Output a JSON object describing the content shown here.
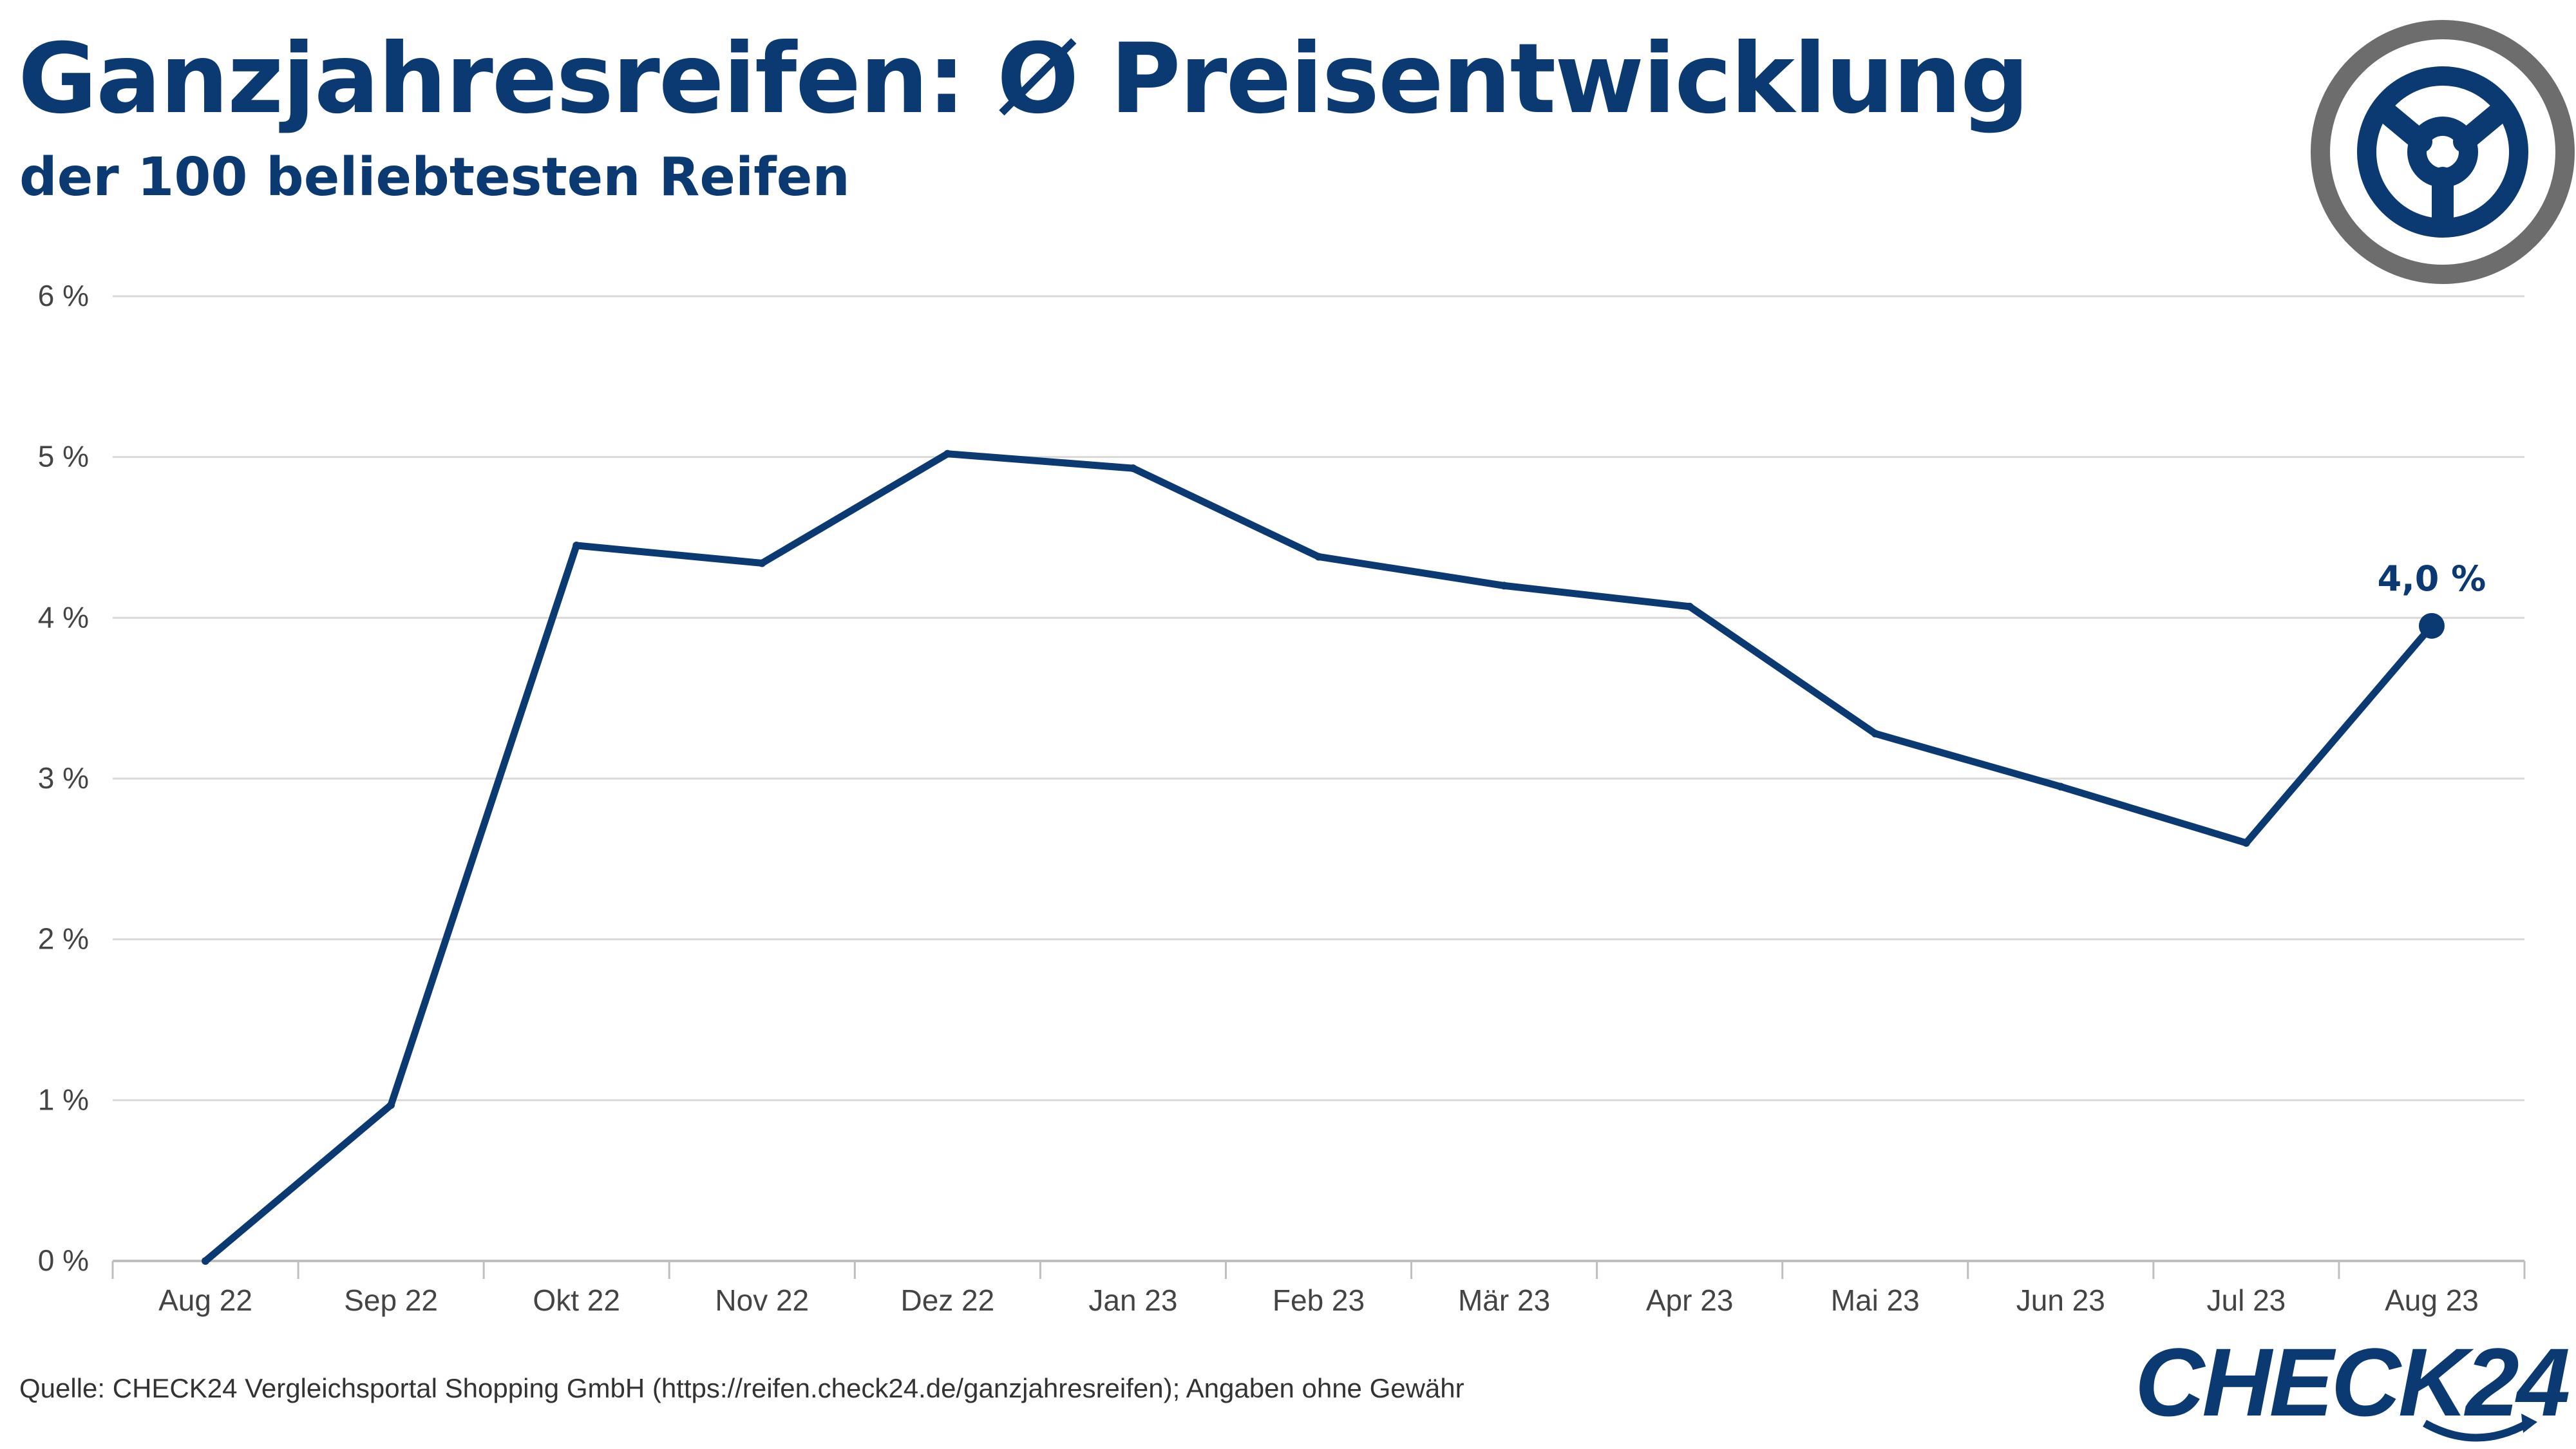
{
  "header": {
    "title": "Ganzjahresreifen: Ø Preisentwicklung",
    "subtitle": "der 100 beliebtesten Reifen"
  },
  "footer": {
    "source": "Quelle: CHECK24 Vergleichsportal Shopping GmbH (https://reifen.check24.de/ganzjahresreifen); Angaben ohne Gewähr",
    "logo_text": "CHECK24"
  },
  "colors": {
    "line": "#0b3a73",
    "grid": "#d9d9d9",
    "ring": "#6d6d6d"
  },
  "chart_data": {
    "type": "line",
    "categories": [
      "Aug 22",
      "Sep 22",
      "Okt 22",
      "Nov 22",
      "Dez 22",
      "Jan 23",
      "Feb 23",
      "Mär 23",
      "Apr 23",
      "Mai 23",
      "Jun 23",
      "Jul 23",
      "Aug 23"
    ],
    "series": [
      {
        "values": [
          0.0,
          0.97,
          4.45,
          4.34,
          5.02,
          4.93,
          4.38,
          4.2,
          4.07,
          3.28,
          2.95,
          2.6,
          3.95
        ]
      }
    ],
    "ylim": [
      0,
      6
    ],
    "yticks": [
      0,
      1,
      2,
      3,
      4,
      5,
      6
    ],
    "ytick_labels": [
      "0 %",
      "1 %",
      "2 %",
      "3 %",
      "4 %",
      "5 %",
      "6 %"
    ],
    "annotation": {
      "index": 12,
      "label": "4,0 %"
    },
    "grid": true,
    "xlabel": "",
    "ylabel": ""
  }
}
